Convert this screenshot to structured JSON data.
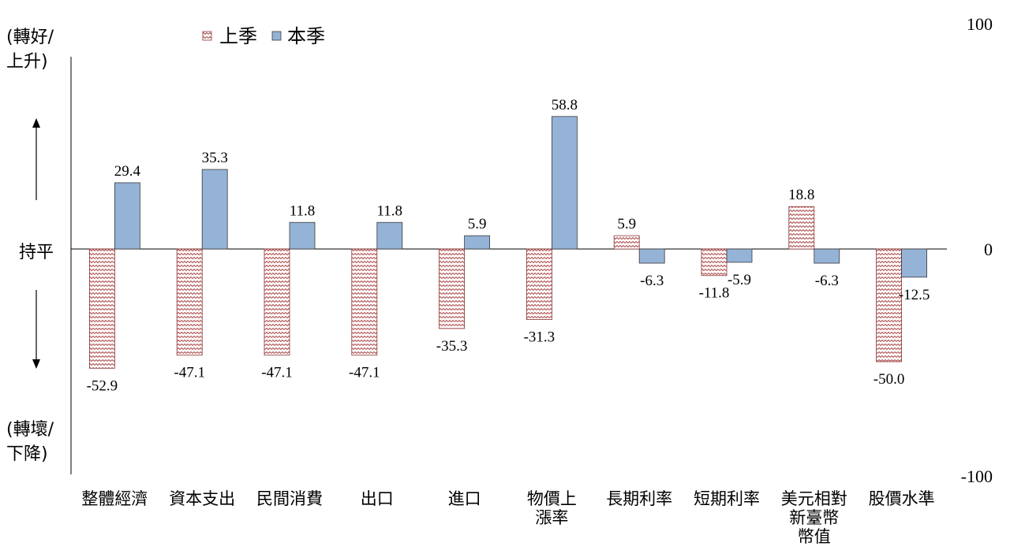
{
  "chart_data": {
    "type": "bar",
    "categories": [
      [
        "整體經濟"
      ],
      [
        "資本支出"
      ],
      [
        "民間消費"
      ],
      [
        "出口"
      ],
      [
        "進口"
      ],
      [
        "物價上",
        "漲率"
      ],
      [
        "長期利率"
      ],
      [
        "短期利率"
      ],
      [
        "美元相對",
        "新臺幣",
        "幣值"
      ],
      [
        "股價水準"
      ]
    ],
    "series": [
      {
        "name": "上季",
        "values": [
          -52.9,
          -47.1,
          -47.1,
          -47.1,
          -35.3,
          -31.3,
          5.9,
          -11.8,
          18.8,
          -50.0
        ],
        "labels": [
          "-52.9",
          "-47.1",
          "-47.1",
          "-47.1",
          "-35.3",
          "-31.3",
          "5.9",
          "-11.8",
          "18.8",
          "-50.0"
        ]
      },
      {
        "name": "本季",
        "values": [
          29.4,
          35.3,
          11.8,
          11.8,
          5.9,
          58.8,
          -6.3,
          -5.9,
          -6.3,
          -12.5
        ],
        "labels": [
          "29.4",
          "35.3",
          "11.8",
          "11.8",
          "5.9",
          "58.8",
          "-6.3",
          "-5.9",
          "-6.3",
          "-12.5"
        ]
      }
    ],
    "ylim": [
      -100,
      100
    ],
    "y_ticks": [
      "100",
      "0",
      "-100"
    ],
    "left_labels": {
      "top": [
        "(轉好/",
        "上升)"
      ],
      "middle": "持平",
      "bottom": [
        "(轉壞/",
        "下降)"
      ]
    },
    "legend_position": "top-left",
    "colors": {
      "prev_fill": "#ffffff",
      "prev_pattern": "#b05050",
      "prev_border": "#8b2f2f",
      "curr_fill": "#94b3d7",
      "curr_border": "#3a3a3a",
      "axis": "#000000",
      "text": "#000000"
    }
  }
}
